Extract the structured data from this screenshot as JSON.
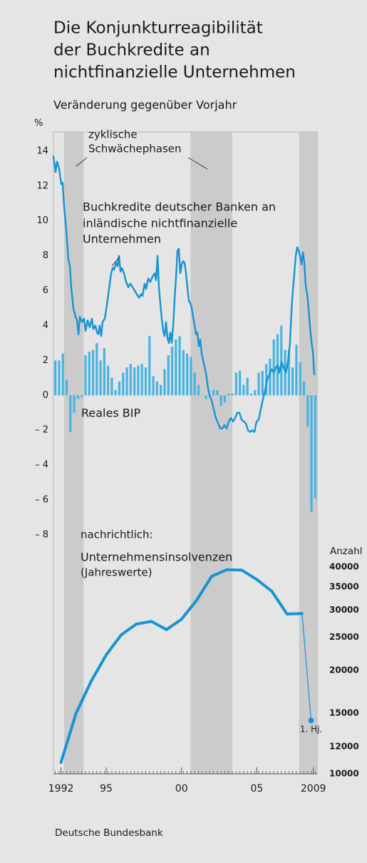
{
  "chart_data": {
    "type": "combo",
    "title": [
      "Die Konjunkturreagibilität",
      "der Buchkredite an",
      "nichtfinanzielle Unternehmen"
    ],
    "subtitle": "Veränderung gegenüber Vorjahr",
    "y_label": "%",
    "y2_label": "Anzahl",
    "source": "Deutsche Bundesbank",
    "annotations": {
      "phases": [
        "zyklische",
        "Schwächephasen"
      ],
      "memo": "nachrichtlich:",
      "annual": "(Jahreswerte)"
    },
    "shaded_periods": [
      [
        1992.7,
        1994.0
      ],
      [
        2001.1,
        2003.87
      ],
      [
        2008.3,
        2009.5
      ]
    ],
    "shade_color": "#cbcbcb",
    "xlim": [
      1992,
      2009.5
    ],
    "xticks": [
      {
        "value": 1992.5,
        "label": "1992"
      },
      {
        "value": 1995.5,
        "label": "95"
      },
      {
        "value": 2000.5,
        "label": "00"
      },
      {
        "value": 2005.5,
        "label": "05"
      },
      {
        "value": 2009.25,
        "label": "2009"
      }
    ],
    "ylim": [
      -21.7,
      15.1
    ],
    "yticks": [
      {
        "value": -8,
        "label": "– 8"
      },
      {
        "value": -6,
        "label": "– 6"
      },
      {
        "value": -4,
        "label": "– 4"
      },
      {
        "value": -2,
        "label": "– 2"
      },
      0,
      2,
      4,
      6,
      8,
      10,
      12,
      14
    ],
    "y2lim": [
      10000,
      740000
    ],
    "y2_log": true,
    "y2ticks": [
      10000,
      12000,
      15000,
      20000,
      25000,
      30000,
      35000,
      40000
    ],
    "grid": false,
    "series": [
      {
        "type": "line",
        "name": [
          "Buchkredite deutscher Banken an",
          "inländische nichtfinanzielle",
          "Unternehmen"
        ],
        "color": "#1794d2",
        "x": [
          1992,
          1992.14,
          1992.24,
          1992.38,
          1992.52,
          1992.61,
          1992.71,
          1992.85,
          1992.99,
          1993.09,
          1993.18,
          1993.32,
          1993.47,
          1993.56,
          1993.66,
          1993.75,
          1993.89,
          1994.03,
          1994.13,
          1994.27,
          1994.41,
          1994.55,
          1994.65,
          1994.79,
          1994.89,
          1994.98,
          1995.07,
          1995.17,
          1995.26,
          1995.41,
          1995.55,
          1995.69,
          1995.83,
          1995.93,
          1996.02,
          1996.16,
          1996.26,
          1996.35,
          1996.45,
          1996.54,
          1996.68,
          1996.82,
          1996.97,
          1997.11,
          1997.25,
          1997.39,
          1997.53,
          1997.68,
          1997.82,
          1997.91,
          1998.05,
          1998.15,
          1998.29,
          1998.43,
          1998.57,
          1998.72,
          1998.81,
          1998.91,
          1999,
          1999.1,
          1999.19,
          1999.28,
          1999.38,
          1999.47,
          1999.57,
          1999.66,
          1999.76,
          1999.85,
          1999.95,
          2000.04,
          2000.14,
          2000.23,
          2000.32,
          2000.42,
          2000.51,
          2000.61,
          2000.7,
          2000.8,
          2000.89,
          2000.99,
          2001.08,
          2001.18,
          2001.27,
          2001.37,
          2001.46,
          2001.55,
          2001.65,
          2001.74,
          2001.84,
          2001.93,
          2002.07,
          2002.17,
          2002.26,
          2002.36,
          2002.5,
          2002.64,
          2002.78,
          2002.93,
          2003.07,
          2003.21,
          2003.35,
          2003.49,
          2003.64,
          2003.78,
          2003.92,
          2004.06,
          2004.2,
          2004.35,
          2004.49,
          2004.63,
          2004.77,
          2004.91,
          2005.05,
          2005.2,
          2005.34,
          2005.48,
          2005.62,
          2005.76,
          2005.91,
          2006.05,
          2006.19,
          2006.33,
          2006.47,
          2006.62,
          2006.76,
          2006.9,
          2006.99,
          2007.14,
          2007.28,
          2007.42,
          2007.56,
          2007.7,
          2007.8,
          2007.89,
          2007.99,
          2008.08,
          2008.18,
          2008.27,
          2008.37,
          2008.46,
          2008.56,
          2008.65,
          2008.74,
          2008.84,
          2008.93,
          2009.03,
          2009.12,
          2009.22,
          2009.31
        ],
        "values": [
          13.7,
          12.8,
          13.4,
          13.0,
          12.1,
          12.2,
          10.8,
          9.5,
          7.8,
          7.4,
          6.2,
          5.0,
          4.5,
          4.3,
          3.5,
          4.5,
          4.2,
          4.4,
          3.7,
          4.3,
          3.9,
          4.4,
          3.8,
          4.0,
          3.6,
          3.5,
          4.0,
          3.4,
          4.2,
          4.4,
          5.2,
          6.1,
          7.0,
          7.3,
          7.2,
          7.6,
          7.4,
          8.0,
          7.1,
          7.3,
          7.0,
          6.5,
          6.2,
          6.4,
          6.2,
          6.0,
          5.8,
          5.6,
          5.8,
          5.7,
          6.4,
          6.1,
          6.7,
          6.5,
          6.8,
          7.0,
          6.6,
          8.0,
          6.2,
          5.2,
          4.4,
          3.7,
          3.4,
          4.2,
          3.3,
          3.0,
          3.6,
          3.0,
          4.0,
          5.5,
          6.8,
          8.3,
          8.4,
          7.0,
          7.5,
          7.7,
          7.6,
          7.0,
          6.2,
          5.4,
          5.3,
          5.0,
          4.5,
          4.0,
          3.5,
          3.6,
          2.8,
          3.2,
          2.4,
          2.0,
          1.5,
          1.0,
          0.4,
          0.0,
          -0.3,
          -0.8,
          -1.3,
          -1.6,
          -1.9,
          -1.9,
          -1.7,
          -1.9,
          -1.5,
          -1.3,
          -1.5,
          -1.3,
          -1.0,
          -1.0,
          -1.4,
          -1.5,
          -1.6,
          -2.0,
          -2.1,
          -2.0,
          -2.1,
          -1.5,
          -1.4,
          -0.8,
          -0.2,
          0.3,
          0.9,
          1.2,
          1.5,
          1.3,
          1.6,
          1.7,
          1.3,
          1.9,
          1.6,
          1.3,
          1.9,
          3.0,
          4.9,
          6.0,
          7.0,
          8.0,
          8.5,
          8.3,
          8.0,
          7.5,
          8.2,
          7.6,
          6.3,
          5.8,
          5.0,
          3.9,
          3.1,
          2.5,
          1.2
        ]
      },
      {
        "type": "bar",
        "name": "Reales BIP",
        "color": "#47b3e2",
        "x": [
          1992.125,
          1992.375,
          1992.625,
          1992.875,
          1993.125,
          1993.375,
          1993.625,
          1993.875,
          1994.125,
          1994.375,
          1994.625,
          1994.875,
          1995.125,
          1995.375,
          1995.625,
          1995.875,
          1996.125,
          1996.375,
          1996.625,
          1996.875,
          1997.125,
          1997.375,
          1997.625,
          1997.875,
          1998.125,
          1998.375,
          1998.625,
          1998.875,
          1999.125,
          1999.375,
          1999.625,
          1999.875,
          2000.125,
          2000.375,
          2000.625,
          2000.875,
          2001.125,
          2001.375,
          2001.625,
          2001.875,
          2002.125,
          2002.375,
          2002.625,
          2002.875,
          2003.125,
          2003.375,
          2003.625,
          2003.875,
          2004.125,
          2004.375,
          2004.625,
          2004.875,
          2005.125,
          2005.375,
          2005.625,
          2005.875,
          2006.125,
          2006.375,
          2006.625,
          2006.875,
          2007.125,
          2007.375,
          2007.625,
          2007.875,
          2008.125,
          2008.375,
          2008.625,
          2008.875,
          2009.125,
          2009.375
        ],
        "values": [
          2.0,
          2.0,
          2.4,
          0.9,
          -2.1,
          -1.0,
          -0.2,
          -0.1,
          2.3,
          2.5,
          2.6,
          3.0,
          2.0,
          2.7,
          1.7,
          1.0,
          0.3,
          0.8,
          1.3,
          1.6,
          1.8,
          1.6,
          1.7,
          1.8,
          1.6,
          3.4,
          1.1,
          0.8,
          0.6,
          1.5,
          2.3,
          2.8,
          3.2,
          3.4,
          2.6,
          2.4,
          2.2,
          1.3,
          0.6,
          0.0,
          -0.2,
          -0.1,
          0.3,
          0.3,
          -0.6,
          -0.4,
          0.1,
          0.1,
          1.3,
          1.4,
          0.6,
          1.0,
          0.1,
          0.3,
          1.3,
          1.4,
          1.8,
          2.1,
          3.2,
          3.5,
          4.0,
          2.6,
          2.6,
          1.6,
          2.9,
          1.9,
          0.8,
          -1.8,
          -6.7,
          -5.9
        ]
      },
      {
        "type": "line",
        "axis": "y2",
        "name": "Unternehmensinsolvenzen",
        "color": "#1794d2",
        "x": [
          1992.5,
          1993.5,
          1994.5,
          1995.5,
          1996.5,
          1997.5,
          1998.5,
          1999.5,
          2000.5,
          2001.5,
          2002.5,
          2003.5,
          2004.5,
          2005.5,
          2006.5,
          2007.5,
          2008.5
        ],
        "values": [
          10800,
          15000,
          18600,
          22200,
          25400,
          27300,
          27800,
          26300,
          28200,
          32000,
          37600,
          39300,
          39200,
          36800,
          34000,
          29200,
          29300
        ]
      },
      {
        "type": "point",
        "axis": "y2",
        "name": "1. Hj.",
        "color": "#1794d2",
        "x": [
          2009.1
        ],
        "values": [
          14300
        ]
      }
    ]
  }
}
